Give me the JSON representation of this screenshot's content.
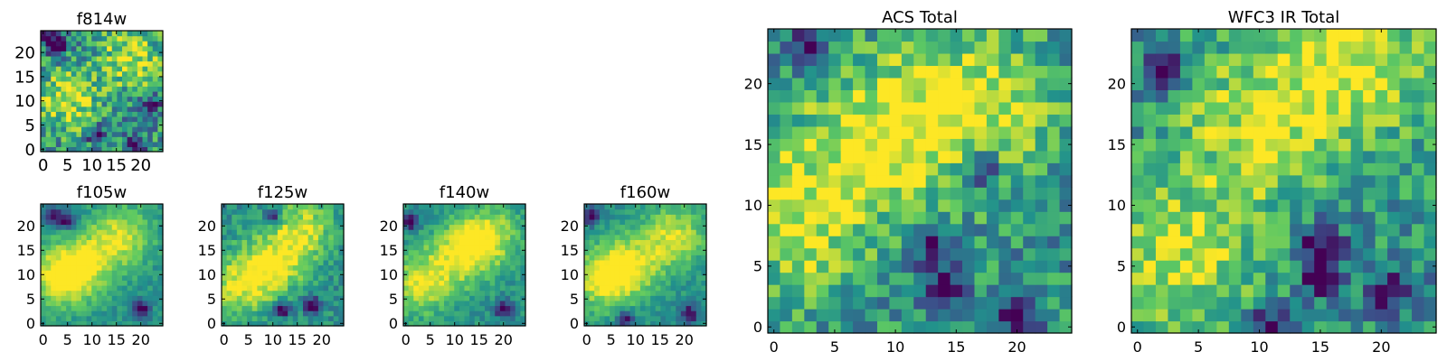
{
  "colors": {
    "colormap": "viridis",
    "stops": [
      "#440154",
      "#3b528b",
      "#21918c",
      "#5ec962",
      "#fde725"
    ]
  },
  "chart_data": [
    {
      "type": "heatmap",
      "title": "f814w",
      "grid_size": 24,
      "xlim": [
        0,
        24
      ],
      "ylim": [
        0,
        24
      ],
      "xticks": [
        0,
        5,
        10,
        15,
        20
      ],
      "yticks": [
        0,
        5,
        10,
        15,
        20
      ],
      "color_range": [
        0,
        1
      ],
      "brightness_centers": [
        [
          18,
          19
        ],
        [
          5,
          10
        ]
      ],
      "dark_centers": [
        [
          1,
          23
        ],
        [
          3,
          21
        ],
        [
          19,
          1
        ],
        [
          11,
          3
        ],
        [
          22,
          9
        ]
      ],
      "noise_seed": 814,
      "noise_amp": 0.55
    },
    {
      "type": "heatmap",
      "title": "f105w",
      "grid_size": 24,
      "xlim": [
        0,
        24
      ],
      "ylim": [
        0,
        24
      ],
      "xticks": [
        0,
        5,
        10,
        15,
        20
      ],
      "yticks": [
        0,
        5,
        10,
        15,
        20
      ],
      "color_range": [
        0,
        1
      ],
      "brightness_centers": [
        [
          3,
          9
        ],
        [
          8,
          12
        ],
        [
          16,
          18
        ]
      ],
      "dark_centers": [
        [
          2,
          22
        ],
        [
          5,
          21
        ],
        [
          20,
          3
        ]
      ],
      "noise_seed": 105,
      "noise_amp": 0.2
    },
    {
      "type": "heatmap",
      "title": "f125w",
      "grid_size": 24,
      "xlim": [
        0,
        24
      ],
      "ylim": [
        0,
        24
      ],
      "xticks": [
        0,
        5,
        10,
        15,
        20
      ],
      "yticks": [
        0,
        5,
        10,
        15,
        20
      ],
      "color_range": [
        0,
        1
      ],
      "brightness_centers": [
        [
          3,
          8
        ],
        [
          16,
          19
        ],
        [
          10,
          12
        ]
      ],
      "dark_centers": [
        [
          10,
          22
        ],
        [
          18,
          4
        ],
        [
          12,
          3
        ]
      ],
      "noise_seed": 125,
      "noise_amp": 0.28
    },
    {
      "type": "heatmap",
      "title": "f140w",
      "grid_size": 24,
      "xlim": [
        0,
        24
      ],
      "ylim": [
        0,
        24
      ],
      "xticks": [
        0,
        5,
        10,
        15,
        20
      ],
      "yticks": [
        0,
        5,
        10,
        15,
        20
      ],
      "color_range": [
        0,
        1
      ],
      "brightness_centers": [
        [
          3,
          8
        ],
        [
          11,
          14
        ],
        [
          17,
          18
        ]
      ],
      "dark_centers": [
        [
          1,
          21
        ],
        [
          20,
          3
        ]
      ],
      "noise_seed": 140,
      "noise_amp": 0.22
    },
    {
      "type": "heatmap",
      "title": "f160w",
      "grid_size": 24,
      "xlim": [
        0,
        24
      ],
      "ylim": [
        0,
        24
      ],
      "xticks": [
        0,
        5,
        10,
        15,
        20
      ],
      "yticks": [
        0,
        5,
        10,
        15,
        20
      ],
      "color_range": [
        0,
        1
      ],
      "brightness_centers": [
        [
          3,
          9
        ],
        [
          9,
          12
        ],
        [
          18,
          18
        ]
      ],
      "dark_centers": [
        [
          1,
          22
        ],
        [
          21,
          2
        ],
        [
          8,
          1
        ]
      ],
      "noise_seed": 160,
      "noise_amp": 0.2
    },
    {
      "type": "heatmap",
      "title": "ACS Total",
      "grid_size": 25,
      "xlim": [
        0,
        24
      ],
      "ylim": [
        0,
        24
      ],
      "xticks": [
        0,
        5,
        10,
        15,
        20
      ],
      "yticks": [
        0,
        5,
        10,
        15,
        20
      ],
      "color_range": [
        0,
        1
      ],
      "brightness_centers": [
        [
          9,
          16
        ],
        [
          17,
          18
        ],
        [
          2,
          9
        ]
      ],
      "dark_centers": [
        [
          3,
          23
        ],
        [
          17,
          13
        ],
        [
          14,
          3
        ],
        [
          20,
          1
        ],
        [
          13,
          7
        ]
      ],
      "noise_seed": 7,
      "noise_amp": 0.45
    },
    {
      "type": "heatmap",
      "title": "WFC3 IR Total",
      "grid_size": 25,
      "xlim": [
        0,
        24
      ],
      "ylim": [
        0,
        24
      ],
      "xticks": [
        0,
        5,
        10,
        15,
        20
      ],
      "yticks": [
        0,
        5,
        10,
        15,
        20
      ],
      "color_range": [
        0,
        1
      ],
      "brightness_centers": [
        [
          10,
          17
        ],
        [
          18,
          22
        ],
        [
          4,
          6
        ]
      ],
      "dark_centers": [
        [
          2,
          21
        ],
        [
          11,
          0
        ],
        [
          15,
          7
        ],
        [
          15,
          4
        ],
        [
          21,
          3
        ]
      ],
      "noise_seed": 33,
      "noise_amp": 0.45
    }
  ]
}
